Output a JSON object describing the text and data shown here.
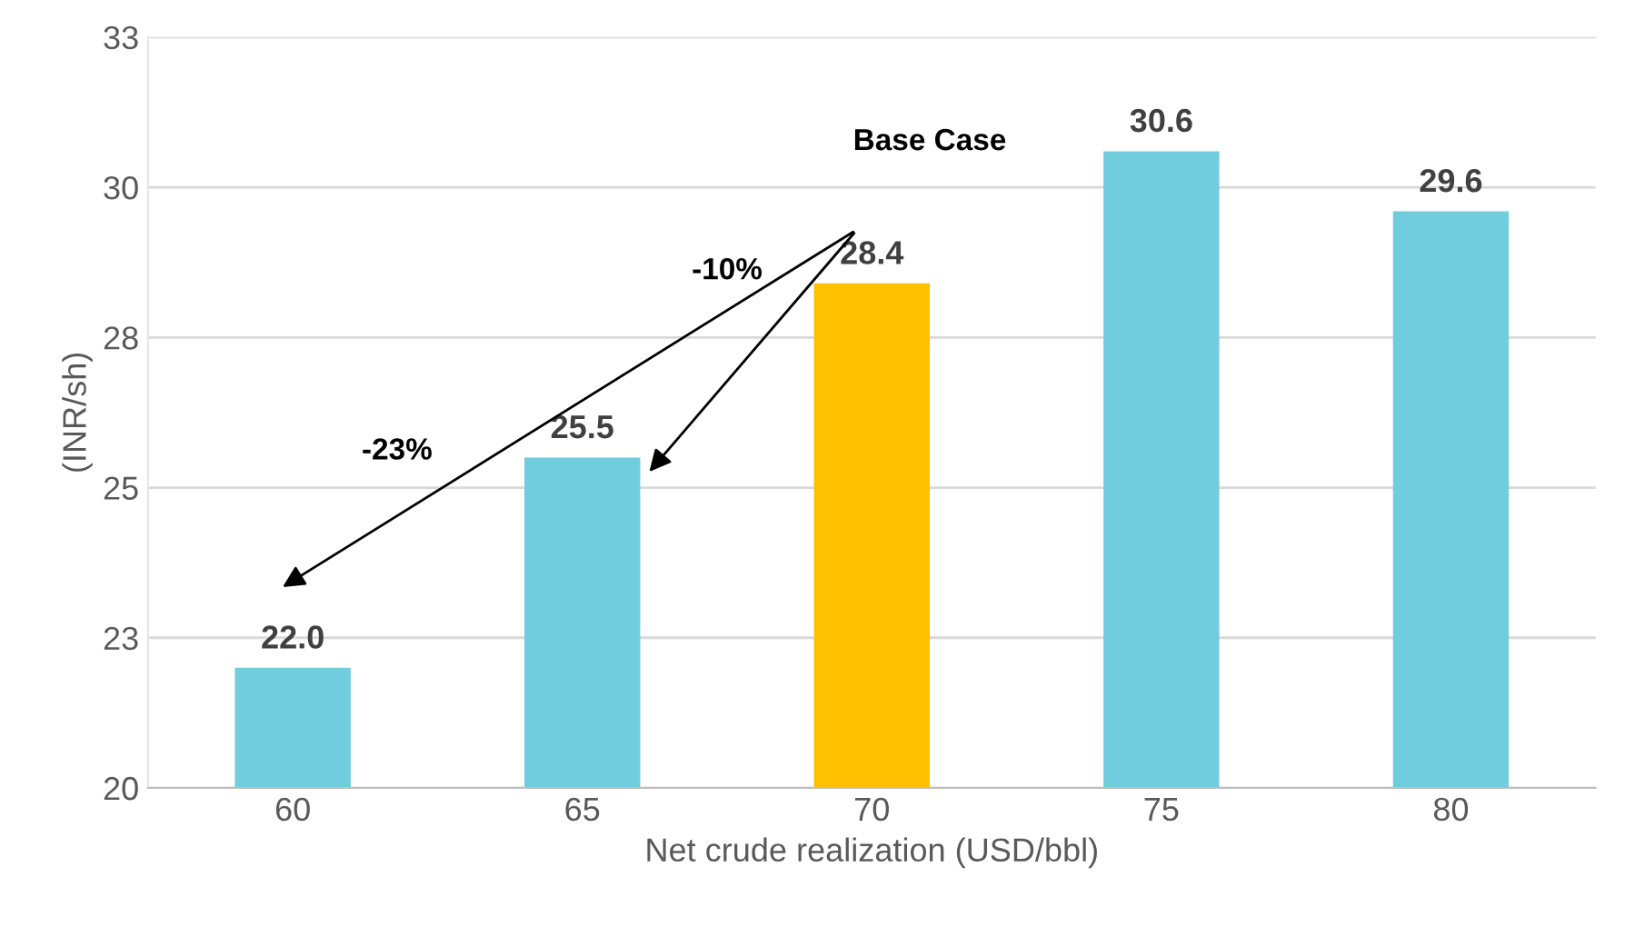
{
  "chart_data": {
    "type": "bar",
    "categories": [
      "60",
      "65",
      "70",
      "75",
      "80"
    ],
    "values": [
      22.0,
      25.5,
      28.4,
      30.6,
      29.6
    ],
    "colors": [
      "#70cddd",
      "#70cddd",
      "#ffc000",
      "#70cddd",
      "#70cddd"
    ],
    "value_labels": [
      "22.0",
      "25.5",
      "28.4",
      "30.6",
      "29.6"
    ],
    "xlabel": "Net crude realization (USD/bbl)",
    "ylabel": "(INR/sh)",
    "ylim": [
      20,
      32.5
    ],
    "yticks": [
      20,
      {
        "value": 22.5,
        "label": "23"
      },
      25,
      {
        "value": 27.5,
        "label": "28"
      },
      30,
      {
        "value": 32.5,
        "label": "33"
      }
    ],
    "grid": "y",
    "legend": false,
    "annotations": [
      "Base Case",
      "-10%",
      "-23%"
    ]
  }
}
